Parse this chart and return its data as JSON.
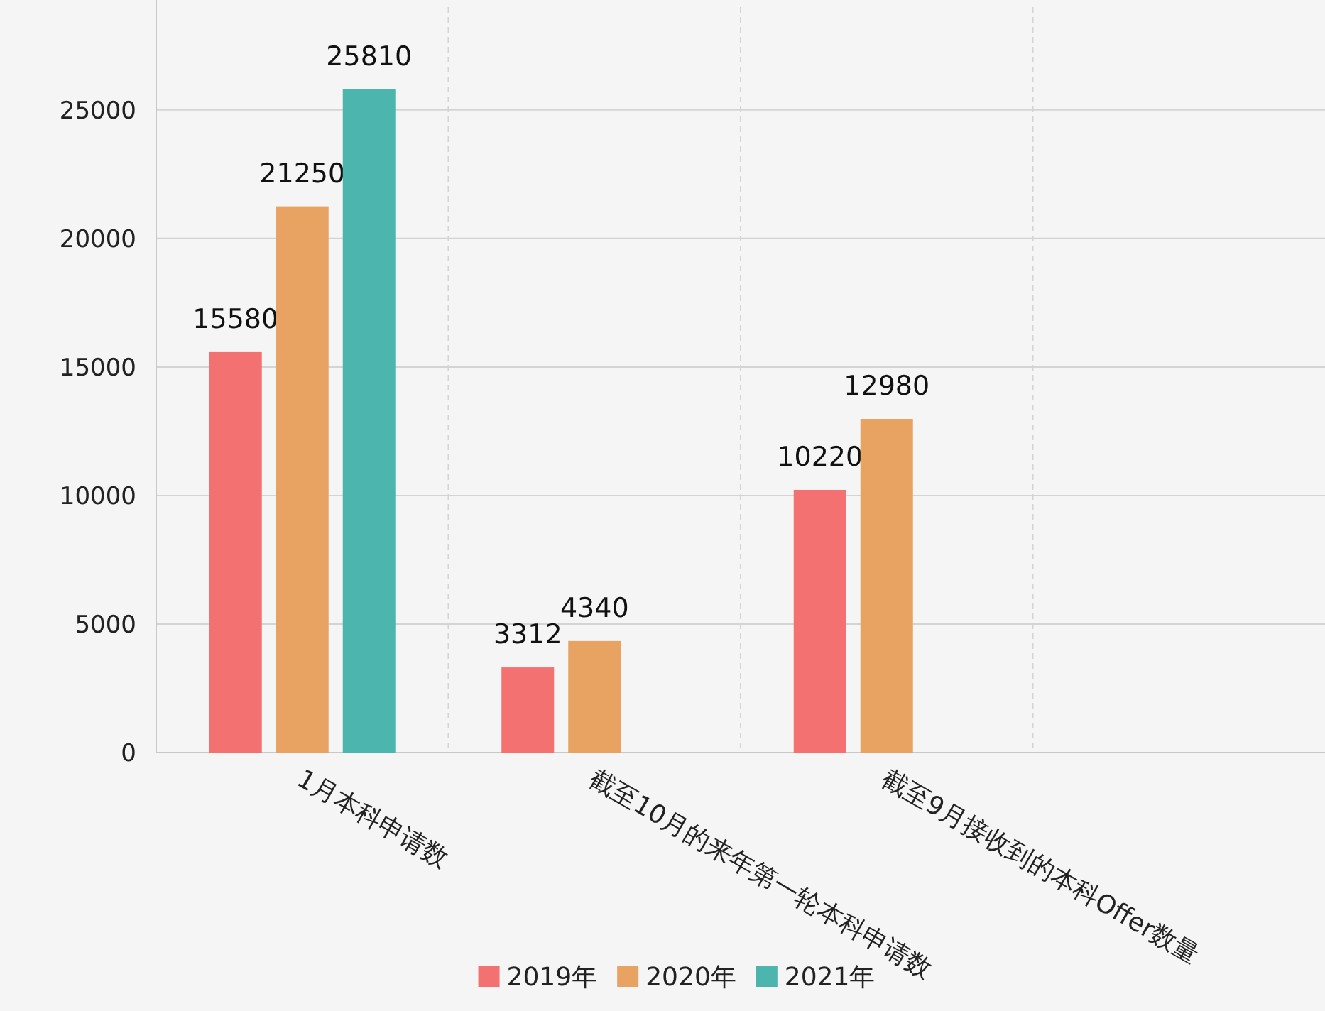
{
  "chart_data": {
    "type": "bar",
    "categories": [
      "1月本科申请数",
      "截至10月的来年第一轮本科申请数",
      "截至9月接收到的本科Offer数量",
      null
    ],
    "series": [
      {
        "name": "2019年",
        "color": "#f47171",
        "values": [
          15580,
          3312,
          10220,
          null
        ]
      },
      {
        "name": "2020年",
        "color": "#e8a262",
        "values": [
          21250,
          4340,
          12980,
          null
        ]
      },
      {
        "name": "2021年",
        "color": "#4cb5ad",
        "values": [
          25810,
          null,
          null,
          null
        ]
      }
    ],
    "ylim": [
      0,
      29000
    ],
    "yticks": [
      0,
      5000,
      10000,
      15000,
      20000,
      25000
    ],
    "grid": true,
    "legend": "bottom",
    "data_labels": true
  }
}
